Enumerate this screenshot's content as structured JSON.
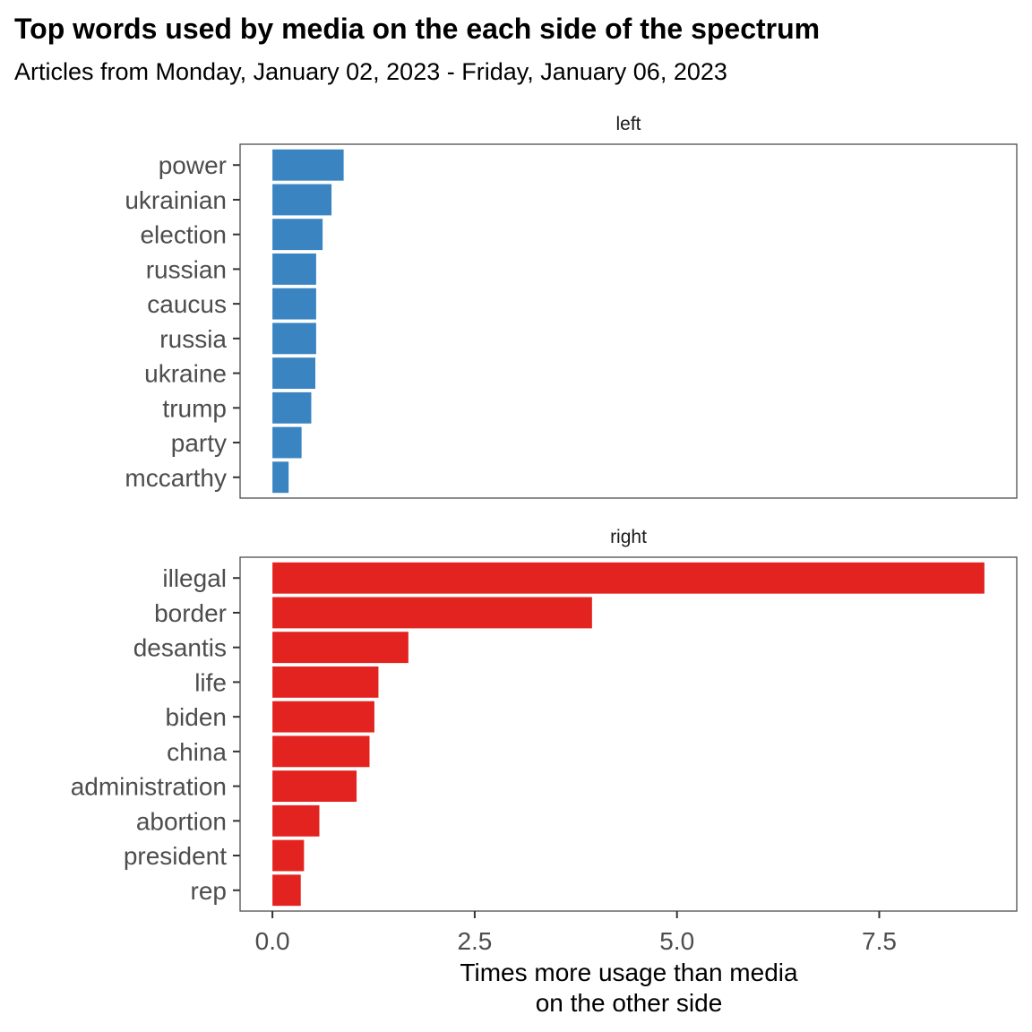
{
  "chart_data": {
    "type": "bar",
    "orientation": "horizontal",
    "title": "Top words used by media on the each side of the spectrum",
    "subtitle": "Articles from Monday, January 02, 2023 - Friday, January 06, 2023",
    "xlabel_lines": [
      "Times more usage than media",
      "on the other side"
    ],
    "xlim": [
      -0.4,
      9.2
    ],
    "xticks": [
      0,
      2.5,
      5,
      7.5
    ],
    "xtick_labels": [
      "0.0",
      "2.5",
      "5.0",
      "7.5"
    ],
    "grid": false,
    "legend": "none",
    "panels": [
      {
        "label": "left",
        "color": "#3A84C1",
        "categories": [
          "power",
          "ukrainian",
          "election",
          "russian",
          "caucus",
          "russia",
          "ukraine",
          "trump",
          "party",
          "mccarthy"
        ],
        "values": [
          0.88,
          0.73,
          0.62,
          0.54,
          0.54,
          0.54,
          0.53,
          0.48,
          0.36,
          0.2
        ]
      },
      {
        "label": "right",
        "color": "#E32320",
        "categories": [
          "illegal",
          "border",
          "desantis",
          "life",
          "biden",
          "china",
          "administration",
          "abortion",
          "president",
          "rep"
        ],
        "values": [
          8.8,
          3.95,
          1.68,
          1.31,
          1.26,
          1.2,
          1.04,
          0.58,
          0.39,
          0.35
        ]
      }
    ]
  }
}
